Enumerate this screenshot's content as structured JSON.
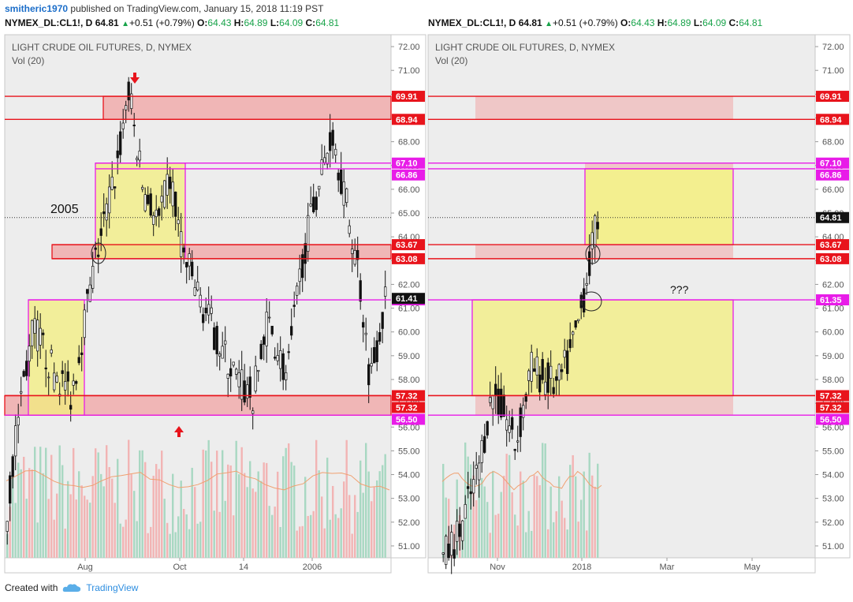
{
  "header": {
    "author": "smitheric1970",
    "published": "published on TradingView.com, January 15, 2018 11:19 PST"
  },
  "quote": {
    "symbol": "NYMEX_DL:CL1!, D",
    "last": "64.81",
    "change": "+0.51 (+0.79%)",
    "o_label": "O:",
    "o": "64.43",
    "h_label": "H:",
    "h": "64.89",
    "l_label": "L:",
    "l": "64.09",
    "c_label": "C:",
    "c": "64.81"
  },
  "footer": {
    "created_with": "Created with",
    "brand": "TradingView"
  },
  "colors": {
    "red": "#e8141c",
    "magenta": "#e81ce8",
    "zone_red": "#f0a8a8",
    "zone_yellow": "#f3ee7e",
    "bull": "#111111",
    "vol_red": "#f2b4b4",
    "vol_green": "#a8d8c2",
    "bg": "#ededed"
  },
  "chart_data": [
    {
      "type": "candlestick",
      "title": "LIGHT CRUDE OIL FUTURES, D, NYMEX",
      "subtitle": "Vol (20)",
      "ylim": [
        50.5,
        72.5
      ],
      "yticks": [
        "51.00",
        "52.00",
        "53.00",
        "54.00",
        "55.00",
        "56.00",
        "57.00",
        "58.00",
        "59.00",
        "60.00",
        "61.00",
        "62.00",
        "63.00",
        "64.00",
        "65.00",
        "66.00",
        "67.00",
        "68.00",
        "69.00",
        "70.00",
        "71.00",
        "72.00"
      ],
      "xticks": [
        "Aug",
        "Oct",
        "14",
        "2006"
      ],
      "levels": [
        {
          "value": 69.91,
          "label": "69.91",
          "color": "red"
        },
        {
          "value": 68.94,
          "label": "68.94",
          "color": "red"
        },
        {
          "value": 67.1,
          "label": "67.10",
          "color": "magenta"
        },
        {
          "value": 66.86,
          "label": "66.86",
          "color": "magenta"
        },
        {
          "value": 63.67,
          "label": "63.67",
          "color": "red"
        },
        {
          "value": 63.08,
          "label": "63.08",
          "color": "red"
        },
        {
          "value": 61.35,
          "label": "61.35",
          "color": "magenta"
        },
        {
          "value": 57.32,
          "label": "57.32",
          "color": "red"
        },
        {
          "value": 57.32,
          "label": "57.32",
          "color": "red"
        },
        {
          "value": 56.5,
          "label": "56.50",
          "color": "magenta"
        }
      ],
      "last_price": {
        "value": 61.41,
        "label": "61.41"
      },
      "last_line_value": 64.81,
      "annotations": [
        "2005"
      ]
    },
    {
      "type": "candlestick",
      "title": "LIGHT CRUDE OIL FUTURES, D, NYMEX",
      "subtitle": "Vol (20)",
      "ylim": [
        50.5,
        72.5
      ],
      "yticks": [
        "51.00",
        "52.00",
        "53.00",
        "54.00",
        "55.00",
        "56.00",
        "57.00",
        "58.00",
        "59.00",
        "60.00",
        "61.00",
        "62.00",
        "63.00",
        "64.00",
        "65.00",
        "66.00",
        "67.00",
        "68.00",
        "69.00",
        "70.00",
        "71.00",
        "72.00"
      ],
      "xticks": [
        "Nov",
        "2018",
        "Mar",
        "May"
      ],
      "levels": [
        {
          "value": 69.91,
          "label": "69.91",
          "color": "red"
        },
        {
          "value": 68.94,
          "label": "68.94",
          "color": "red"
        },
        {
          "value": 67.1,
          "label": "67.10",
          "color": "magenta"
        },
        {
          "value": 66.86,
          "label": "66.86",
          "color": "magenta"
        },
        {
          "value": 63.67,
          "label": "63.67",
          "color": "red"
        },
        {
          "value": 63.08,
          "label": "63.08",
          "color": "red"
        },
        {
          "value": 61.35,
          "label": "61.35",
          "color": "magenta"
        },
        {
          "value": 57.32,
          "label": "57.32",
          "color": "red"
        },
        {
          "value": 57.32,
          "label": "57.32",
          "color": "red"
        },
        {
          "value": 56.5,
          "label": "56.50",
          "color": "magenta"
        }
      ],
      "last_price": {
        "value": 64.81,
        "label": "64.81"
      },
      "last_line_value": 64.81,
      "annotations": [
        "???"
      ]
    }
  ]
}
